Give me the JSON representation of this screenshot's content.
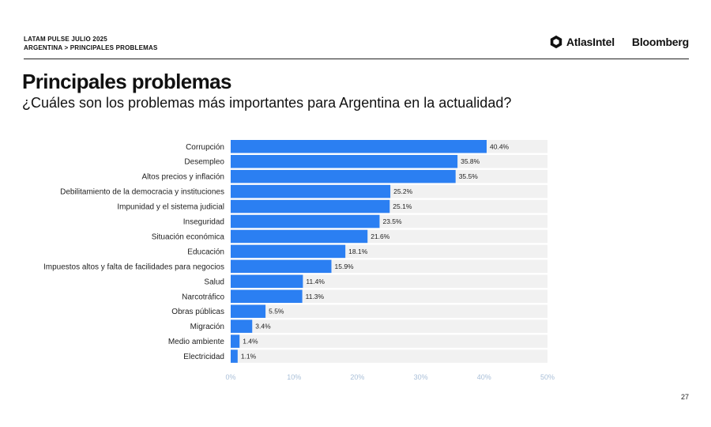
{
  "header": {
    "line1": "LATAM PULSE JULIO 2025",
    "line2": "ARGENTINA > PRINCIPALES PROBLEMAS"
  },
  "logos": {
    "atlas": "AtlasIntel",
    "bloomberg": "Bloomberg"
  },
  "title": "Principales problemas",
  "subtitle": "¿Cuáles son los problemas más importantes para Argentina en la actualidad?",
  "page_number": "27",
  "colors": {
    "bar": "#2b7ff2",
    "track": "#f1f1f1",
    "axis_text": "#a9bfd8"
  },
  "chart_data": {
    "type": "bar",
    "orientation": "horizontal",
    "categories": [
      "Corrupción",
      "Desempleo",
      "Altos precios y inflación",
      "Debilitamiento de la democracia y instituciones",
      "Impunidad y el sistema judicial",
      "Inseguridad",
      "Situación económica",
      "Educación",
      "Impuestos altos y falta de facilidades para negocios",
      "Salud",
      "Narcotráfico",
      "Obras públicas",
      "Migración",
      "Medio ambiente",
      "Electricidad"
    ],
    "values": [
      40.4,
      35.8,
      35.5,
      25.2,
      25.1,
      23.5,
      21.6,
      18.1,
      15.9,
      11.4,
      11.3,
      5.5,
      3.4,
      1.4,
      1.1
    ],
    "value_labels": [
      "40.4%",
      "35.8%",
      "35.5%",
      "25.2%",
      "25.1%",
      "23.5%",
      "21.6%",
      "18.1%",
      "15.9%",
      "11.4%",
      "11.3%",
      "5.5%",
      "3.4%",
      "1.4%",
      "1.1%"
    ],
    "xlim": [
      0,
      50
    ],
    "x_ticks": [
      0,
      10,
      20,
      30,
      40,
      50
    ],
    "x_tick_labels": [
      "0%",
      "10%",
      "20%",
      "30%",
      "40%",
      "50%"
    ],
    "grid": false,
    "legend": "none"
  }
}
